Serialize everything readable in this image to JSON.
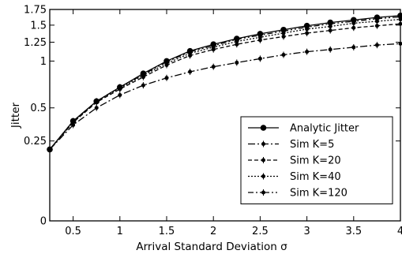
{
  "chart_data": {
    "type": "line",
    "xlabel": "Arrival Standard Deviation σ",
    "ylabel": "Jitter",
    "xlim": [
      0.25,
      4.0
    ],
    "ylim": [
      0,
      1.75
    ],
    "y_scale": "sqrt",
    "x_ticks": [
      0.5,
      1,
      1.5,
      2,
      2.5,
      3,
      3.5,
      4
    ],
    "x_tick_labels": [
      "0.5",
      "1",
      "1.5",
      "2",
      "2.5",
      "3",
      "3.5",
      "4"
    ],
    "y_ticks": [
      0,
      0.25,
      0.5,
      1,
      1.25,
      1.5,
      1.75
    ],
    "y_tick_labels": [
      "0",
      "0.25",
      "0.5",
      "1",
      "1.25",
      "1.5",
      "1.75"
    ],
    "grid": false,
    "legend_position": "bottom-right",
    "x": [
      0.25,
      0.5,
      0.75,
      1.0,
      1.25,
      1.5,
      1.75,
      2.0,
      2.25,
      2.5,
      2.75,
      3.0,
      3.25,
      3.5,
      3.75,
      4.0
    ],
    "series": [
      {
        "name": "Analytic Jitter",
        "line_style": "solid",
        "marker": "circle",
        "values": [
          0.2,
          0.39,
          0.56,
          0.7,
          0.85,
          1.0,
          1.13,
          1.22,
          1.3,
          1.37,
          1.43,
          1.49,
          1.54,
          1.58,
          1.62,
          1.65
        ]
      },
      {
        "name": "Sim K=5",
        "line_style": "dash-dot",
        "marker": "plus",
        "values": [
          0.2,
          0.36,
          0.5,
          0.62,
          0.72,
          0.8,
          0.87,
          0.93,
          0.98,
          1.03,
          1.08,
          1.12,
          1.15,
          1.18,
          1.21,
          1.23
        ]
      },
      {
        "name": "Sim K=20",
        "line_style": "dashed",
        "marker": "plus",
        "values": [
          0.2,
          0.38,
          0.55,
          0.68,
          0.81,
          0.95,
          1.07,
          1.15,
          1.22,
          1.28,
          1.33,
          1.38,
          1.42,
          1.46,
          1.49,
          1.52
        ]
      },
      {
        "name": "Sim K=40",
        "line_style": "dotted",
        "marker": "plus",
        "values": [
          0.2,
          0.38,
          0.56,
          0.69,
          0.83,
          0.97,
          1.1,
          1.18,
          1.26,
          1.32,
          1.38,
          1.44,
          1.48,
          1.53,
          1.56,
          1.59
        ]
      },
      {
        "name": "Sim K=120",
        "line_style": "dash-dot-dot",
        "marker": "plus",
        "values": [
          0.2,
          0.39,
          0.56,
          0.7,
          0.84,
          0.99,
          1.12,
          1.2,
          1.29,
          1.35,
          1.41,
          1.47,
          1.52,
          1.56,
          1.6,
          1.63
        ]
      }
    ]
  }
}
